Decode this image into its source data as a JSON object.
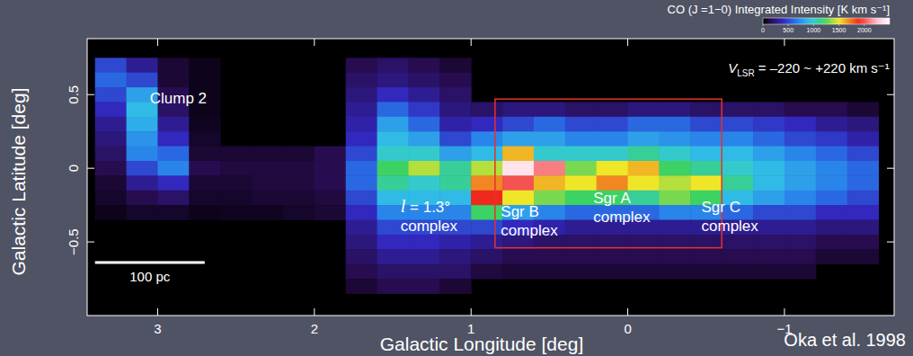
{
  "chart_data": {
    "type": "heatmap",
    "title": "CO (J =1−0) Integrated Intensity [K km s⁻¹]",
    "x_label": "Galactic Longitude  [deg]",
    "y_label": "Galactic Latitude  [deg]",
    "source": "Oka et al. 1998",
    "xlim": [
      3.45,
      -1.7
    ],
    "ylim": [
      -1.0,
      0.88
    ],
    "xticks": [
      3,
      2,
      1,
      0,
      {
        "value": -1,
        "label": "−1"
      }
    ],
    "yticks": [
      0.5,
      0,
      {
        "value": -0.5,
        "label": "−0.5"
      }
    ],
    "clim": [
      0,
      2500
    ],
    "cticks": [
      0,
      500,
      1000,
      1500,
      2000
    ],
    "x": [
      3.3,
      3.1,
      2.9,
      2.7,
      2.5,
      2.3,
      2.1,
      1.9,
      1.7,
      1.5,
      1.3,
      1.1,
      0.9,
      0.7,
      0.5,
      0.3,
      0.1,
      -0.1,
      -0.3,
      -0.5,
      -0.7,
      -0.9,
      -1.1,
      -1.3,
      -1.5
    ],
    "y": [
      0.7,
      0.6,
      0.5,
      0.4,
      0.3,
      0.2,
      0.1,
      0.0,
      -0.1,
      -0.2,
      -0.3,
      -0.4,
      -0.5,
      -0.6,
      -0.7,
      -0.8
    ],
    "values": [
      [
        500,
        300,
        100,
        50,
        null,
        null,
        null,
        null,
        150,
        200,
        150,
        100,
        null,
        null,
        null,
        null,
        null,
        null,
        null,
        null,
        null,
        null,
        null,
        null,
        null
      ],
      [
        600,
        500,
        100,
        50,
        null,
        null,
        null,
        null,
        200,
        250,
        200,
        150,
        null,
        null,
        null,
        null,
        null,
        null,
        null,
        null,
        null,
        null,
        null,
        null,
        null
      ],
      [
        500,
        800,
        150,
        50,
        null,
        null,
        null,
        null,
        250,
        400,
        300,
        200,
        null,
        null,
        null,
        null,
        null,
        null,
        null,
        null,
        null,
        null,
        null,
        null,
        null
      ],
      [
        400,
        900,
        200,
        50,
        null,
        null,
        null,
        null,
        300,
        600,
        450,
        250,
        200,
        250,
        250,
        200,
        200,
        250,
        250,
        200,
        200,
        200,
        150,
        150,
        100
      ],
      [
        300,
        850,
        300,
        60,
        null,
        null,
        null,
        null,
        350,
        800,
        600,
        350,
        400,
        500,
        600,
        500,
        500,
        600,
        600,
        500,
        500,
        450,
        400,
        300,
        250
      ],
      [
        250,
        750,
        400,
        80,
        null,
        null,
        null,
        null,
        400,
        900,
        800,
        500,
        700,
        800,
        800,
        700,
        700,
        800,
        750,
        700,
        700,
        600,
        500,
        450,
        350
      ],
      [
        200,
        700,
        600,
        100,
        100,
        100,
        100,
        150,
        500,
        1000,
        1000,
        800,
        900,
        1600,
        1000,
        1000,
        1000,
        1100,
        1000,
        900,
        900,
        800,
        700,
        600,
        500
      ],
      [
        150,
        500,
        700,
        150,
        120,
        120,
        120,
        150,
        600,
        1200,
        1400,
        1100,
        1400,
        2400,
        2100,
        1300,
        1500,
        1600,
        1200,
        1100,
        1000,
        900,
        800,
        700,
        600
      ],
      [
        100,
        300,
        400,
        100,
        100,
        120,
        120,
        150,
        600,
        1100,
        1000,
        1100,
        1700,
        2000,
        1600,
        1500,
        1700,
        1500,
        1400,
        1500,
        1100,
        900,
        800,
        700,
        600
      ],
      [
        80,
        150,
        200,
        80,
        80,
        100,
        100,
        120,
        500,
        900,
        900,
        900,
        1900,
        1500,
        1300,
        1200,
        1200,
        1100,
        1300,
        1200,
        900,
        800,
        700,
        600,
        500
      ],
      [
        50,
        80,
        80,
        50,
        60,
        60,
        80,
        100,
        400,
        700,
        700,
        700,
        1200,
        800,
        700,
        600,
        600,
        600,
        700,
        700,
        600,
        500,
        500,
        400,
        400
      ],
      [
        null,
        null,
        null,
        null,
        null,
        null,
        null,
        null,
        300,
        500,
        500,
        500,
        500,
        400,
        350,
        300,
        300,
        300,
        300,
        300,
        300,
        300,
        300,
        250,
        250
      ],
      [
        null,
        null,
        null,
        null,
        null,
        null,
        null,
        null,
        250,
        400,
        400,
        350,
        300,
        250,
        200,
        200,
        200,
        200,
        200,
        200,
        200,
        200,
        200,
        150,
        150
      ],
      [
        null,
        null,
        null,
        null,
        null,
        null,
        null,
        null,
        200,
        300,
        300,
        250,
        200,
        150,
        150,
        150,
        150,
        150,
        150,
        150,
        150,
        150,
        150,
        100,
        100
      ],
      [
        null,
        null,
        null,
        null,
        null,
        null,
        null,
        null,
        150,
        200,
        200,
        200,
        120,
        100,
        100,
        100,
        100,
        100,
        100,
        100,
        100,
        100,
        100,
        null,
        null
      ],
      [
        null,
        null,
        null,
        null,
        null,
        null,
        null,
        null,
        100,
        150,
        150,
        100,
        null,
        null,
        null,
        null,
        null,
        null,
        null,
        null,
        null,
        null,
        null,
        null,
        null
      ]
    ],
    "annotations": [
      {
        "text": [
          "VLSR = –220 ~ +220 km s⁻¹"
        ],
        "x": -1.67,
        "y": 0.65
      },
      {
        "text": [
          "Clump 2"
        ],
        "x": 3.05,
        "y": 0.44
      },
      {
        "text": [
          "l = 1.3°",
          "complex"
        ],
        "x": 1.45,
        "y": -0.3
      },
      {
        "text": [
          "Sgr B",
          "complex"
        ],
        "x": 0.81,
        "y": -0.33
      },
      {
        "text": [
          "Sgr A",
          "complex"
        ],
        "x": 0.22,
        "y": -0.24
      },
      {
        "text": [
          "Sgr C",
          "complex"
        ],
        "x": -0.47,
        "y": -0.3
      }
    ],
    "regions": [
      {
        "x": [
          0.847,
          -0.6
        ],
        "y": [
          -0.54,
          0.47
        ],
        "color": "#e8302a"
      }
    ],
    "scale_bar": {
      "label": "100 pc",
      "length": 0.7,
      "x": 3.4,
      "y": -0.64
    }
  }
}
